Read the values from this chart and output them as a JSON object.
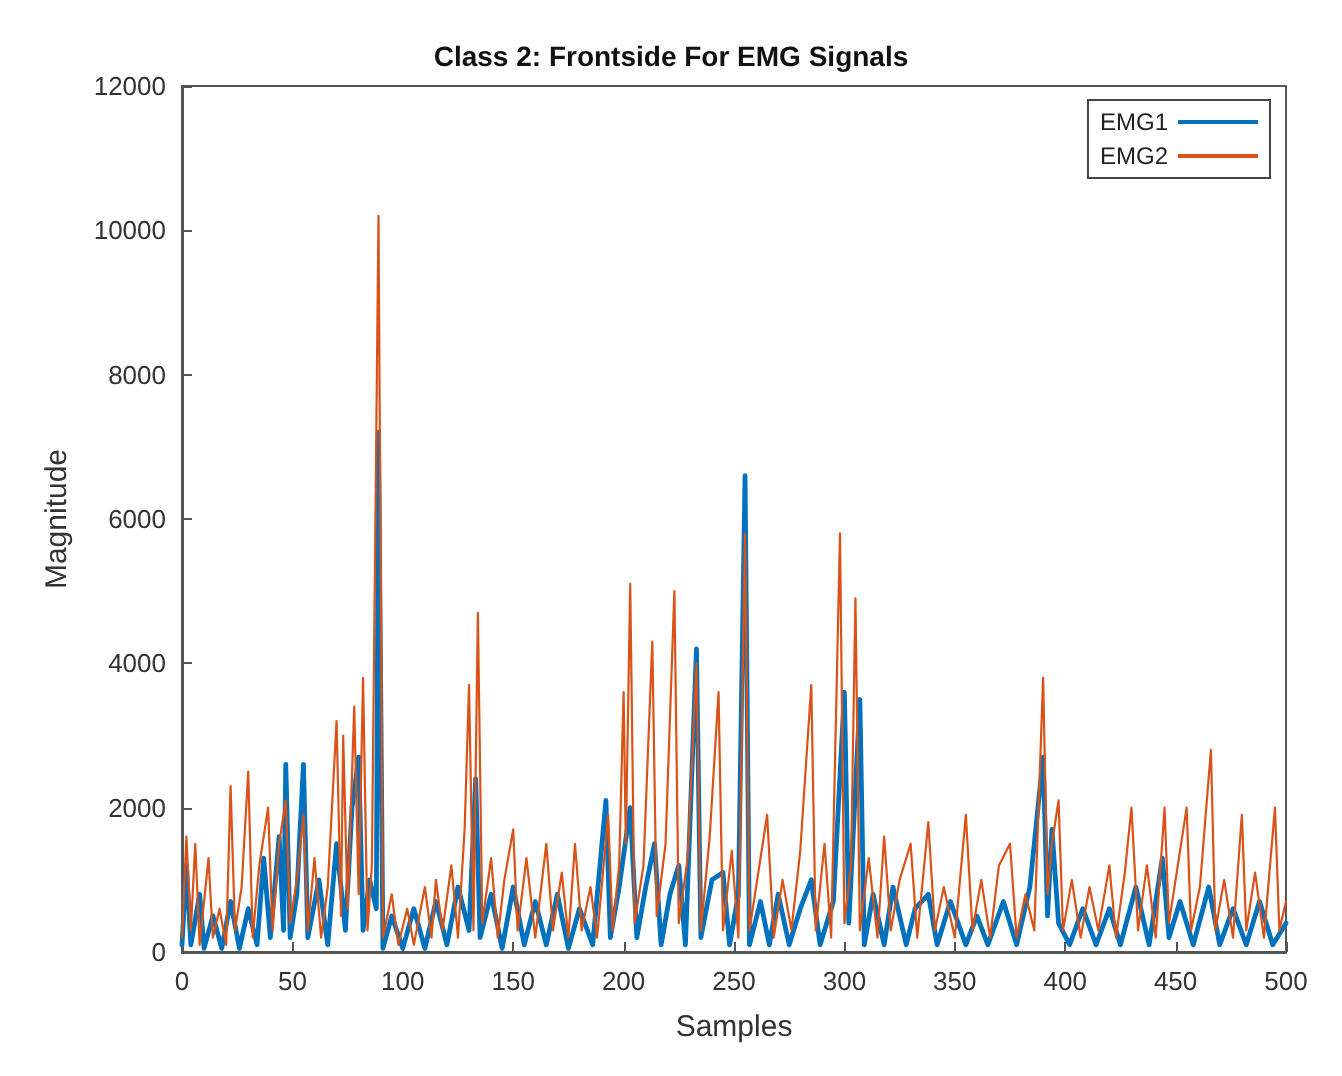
{
  "chart_data": {
    "type": "line",
    "title": "Class 2: Frontside For EMG Signals",
    "xlabel": "Samples",
    "ylabel": "Magnitude",
    "xlim": [
      0,
      500
    ],
    "xticks": [
      0,
      50,
      100,
      150,
      200,
      250,
      300,
      350,
      400,
      450,
      500
    ],
    "ylim": [
      0,
      12000
    ],
    "yticks": [
      0,
      2000,
      4000,
      6000,
      8000,
      10000,
      12000
    ],
    "legend": "top right",
    "grid": false,
    "marker": "none",
    "line_style": "solid",
    "series": [
      {
        "name": "EMG1",
        "color": "#0072bd",
        "x": [
          0,
          2,
          4,
          8,
          10,
          14,
          18,
          22,
          26,
          30,
          34,
          37,
          40,
          44,
          46,
          47,
          49,
          52,
          55,
          57,
          62,
          66,
          70,
          74,
          77,
          80,
          82,
          85,
          88,
          89,
          91,
          95,
          100,
          105,
          110,
          115,
          120,
          125,
          130,
          133,
          135,
          140,
          145,
          150,
          155,
          160,
          165,
          170,
          175,
          180,
          186,
          192,
          194,
          198,
          203,
          206,
          210,
          214,
          217,
          221,
          225,
          228,
          233,
          235,
          240,
          245,
          248,
          252,
          255,
          257,
          262,
          266,
          270,
          275,
          280,
          285,
          289,
          295,
          300,
          302,
          307,
          309,
          313,
          318,
          322,
          328,
          332,
          338,
          342,
          348,
          355,
          360,
          365,
          372,
          378,
          384,
          390,
          392,
          394,
          397,
          402,
          408,
          414,
          420,
          425,
          432,
          438,
          444,
          447,
          452,
          458,
          465,
          470,
          476,
          482,
          488,
          494,
          500
        ],
        "values": [
          100,
          1200,
          100,
          800,
          50,
          500,
          50,
          700,
          50,
          600,
          100,
          1300,
          200,
          1600,
          300,
          2600,
          200,
          800,
          2600,
          200,
          1000,
          100,
          1500,
          300,
          2000,
          2700,
          300,
          1000,
          600,
          7200,
          50,
          500,
          50,
          600,
          50,
          700,
          100,
          900,
          300,
          2400,
          200,
          800,
          50,
          900,
          100,
          700,
          100,
          800,
          50,
          600,
          100,
          2100,
          200,
          900,
          2000,
          200,
          900,
          1500,
          100,
          800,
          1200,
          100,
          4200,
          200,
          1000,
          1100,
          100,
          800,
          6600,
          100,
          700,
          100,
          800,
          100,
          600,
          1000,
          100,
          700,
          3600,
          400,
          3500,
          100,
          800,
          100,
          900,
          100,
          600,
          800,
          100,
          700,
          100,
          500,
          100,
          700,
          100,
          900,
          2700,
          500,
          1700,
          400,
          100,
          600,
          100,
          600,
          100,
          900,
          100,
          1300,
          200,
          700,
          100,
          900,
          100,
          600,
          100,
          700,
          100,
          400
        ]
      },
      {
        "name": "EMG2",
        "color": "#d95319",
        "x": [
          0,
          2,
          4,
          6,
          8,
          10,
          12,
          14,
          17,
          20,
          22,
          24,
          27,
          30,
          32,
          35,
          39,
          41,
          44,
          47,
          49,
          52,
          55,
          57,
          60,
          63,
          66,
          70,
          72,
          73,
          75,
          78,
          80,
          82,
          84,
          86,
          89,
          91,
          95,
          98,
          102,
          105,
          110,
          113,
          115,
          118,
          122,
          125,
          128,
          130,
          132,
          134,
          136,
          140,
          143,
          146,
          150,
          152,
          156,
          160,
          165,
          168,
          172,
          175,
          178,
          181,
          185,
          188,
          193,
          195,
          198,
          200,
          201,
          203,
          205,
          209,
          213,
          215,
          219,
          223,
          225,
          229,
          233,
          235,
          239,
          243,
          245,
          249,
          252,
          255,
          257,
          261,
          265,
          268,
          272,
          276,
          280,
          285,
          287,
          291,
          294,
          298,
          300,
          303,
          305,
          307,
          311,
          315,
          318,
          321,
          325,
          330,
          333,
          338,
          341,
          345,
          350,
          355,
          358,
          362,
          366,
          370,
          375,
          378,
          382,
          386,
          390,
          392,
          394,
          397,
          399,
          403,
          407,
          411,
          415,
          420,
          423,
          427,
          430,
          433,
          437,
          441,
          445,
          447,
          451,
          455,
          457,
          461,
          466,
          468,
          472,
          476,
          480,
          482,
          486,
          490,
          495,
          497,
          500
        ],
        "values": [
          200,
          1600,
          300,
          1500,
          100,
          700,
          1300,
          200,
          600,
          100,
          2300,
          300,
          900,
          2500,
          200,
          1200,
          2000,
          300,
          1500,
          2100,
          400,
          1000,
          1900,
          300,
          1300,
          200,
          900,
          3200,
          500,
          3000,
          600,
          3400,
          800,
          3800,
          300,
          1200,
          10200,
          200,
          800,
          100,
          600,
          100,
          900,
          200,
          1000,
          300,
          1200,
          200,
          1700,
          3700,
          300,
          4700,
          400,
          1300,
          200,
          1000,
          1700,
          300,
          1300,
          200,
          1500,
          300,
          1100,
          200,
          1500,
          300,
          900,
          200,
          1900,
          300,
          1200,
          3600,
          1500,
          5100,
          400,
          1200,
          4300,
          500,
          1500,
          5000,
          400,
          1300,
          4000,
          300,
          1600,
          3600,
          300,
          1400,
          200,
          5800,
          300,
          1100,
          1900,
          200,
          1000,
          300,
          1400,
          3700,
          300,
          1500,
          200,
          5800,
          400,
          1200,
          4900,
          300,
          1300,
          200,
          1600,
          300,
          1000,
          1500,
          200,
          1800,
          300,
          900,
          200,
          1900,
          300,
          1000,
          200,
          1200,
          1500,
          200,
          800,
          300,
          3800,
          800,
          1500,
          2100,
          300,
          1000,
          200,
          900,
          300,
          1200,
          200,
          1100,
          2000,
          300,
          1200,
          200,
          2000,
          400,
          1200,
          2000,
          300,
          900,
          2800,
          300,
          1000,
          200,
          1900,
          300,
          1100,
          200,
          2000,
          300,
          700
        ]
      }
    ]
  }
}
